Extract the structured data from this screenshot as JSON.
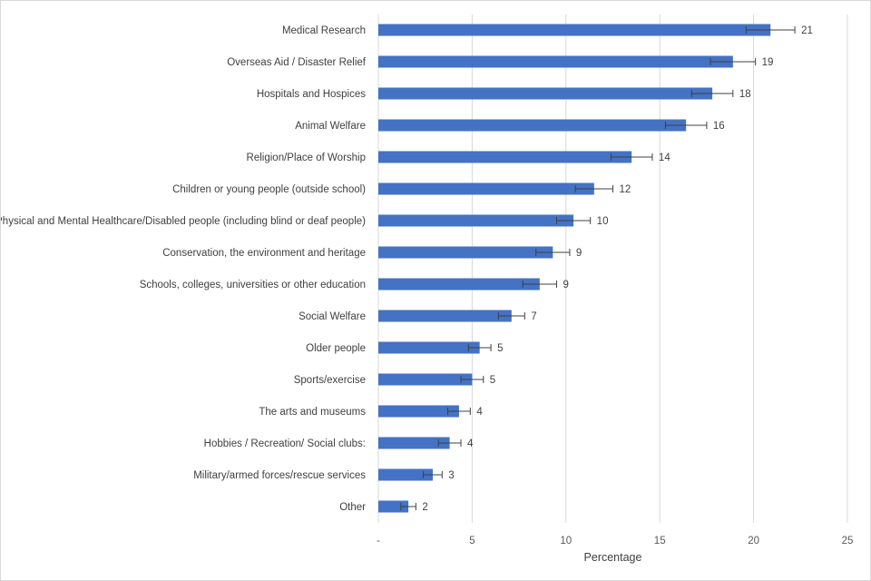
{
  "chart_data": {
    "type": "bar",
    "orientation": "horizontal",
    "title": "",
    "xlabel": "Percentage",
    "ylabel": "",
    "xlim": [
      0,
      25
    ],
    "xticks": [
      0,
      5,
      10,
      15,
      20,
      25
    ],
    "xtick_labels": [
      "-",
      "5",
      "10",
      "15",
      "20",
      "25"
    ],
    "grid": true,
    "bar_color": "#4472C4",
    "error_color": "#404040",
    "categories": [
      "Medical Research",
      "Overseas Aid / Disaster Relief",
      "Hospitals and Hospices",
      "Animal Welfare",
      "Religion/Place of Worship",
      "Children or young people (outside school)",
      "Physical and Mental Healthcare/Disabled people (including blind or deaf people)",
      "Conservation, the environment and heritage",
      "Schools, colleges, universities or other education",
      "Social Welfare",
      "Older people",
      "Sports/exercise",
      "The arts and museums",
      "Hobbies / Recreation/ Social clubs:",
      "Military/armed forces/rescue services",
      "Other"
    ],
    "values": [
      20.9,
      18.9,
      17.8,
      16.4,
      13.5,
      11.5,
      10.4,
      9.3,
      8.6,
      7.1,
      5.4,
      5.0,
      4.3,
      3.8,
      2.9,
      1.6
    ],
    "data_labels": [
      "21",
      "19",
      "18",
      "16",
      "14",
      "12",
      "10",
      "9",
      "9",
      "7",
      "5",
      "5",
      "4",
      "4",
      "3",
      "2"
    ],
    "error_low": [
      19.6,
      17.7,
      16.7,
      15.3,
      12.4,
      10.5,
      9.5,
      8.4,
      7.7,
      6.4,
      4.8,
      4.4,
      3.7,
      3.2,
      2.4,
      1.2
    ],
    "error_high": [
      22.2,
      20.1,
      18.9,
      17.5,
      14.6,
      12.5,
      11.3,
      10.2,
      9.5,
      7.8,
      6.0,
      5.6,
      4.9,
      4.4,
      3.4,
      2.0
    ]
  }
}
